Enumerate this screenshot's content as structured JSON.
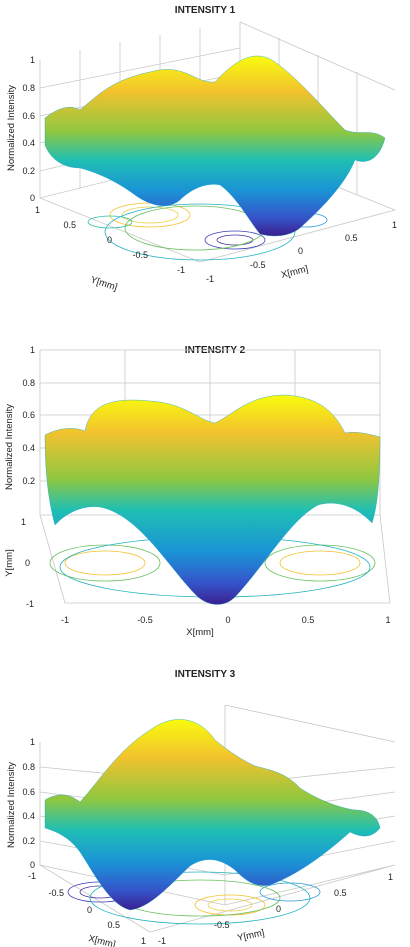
{
  "chart_data": [
    {
      "type": "surface3d",
      "title": "INTENSITY 1",
      "xlabel": "X[mm]",
      "ylabel": "Y[mm]",
      "zlabel": "Normalized Intensity",
      "xlim": [
        -1,
        1
      ],
      "ylim": [
        -1,
        1
      ],
      "zlim": [
        0,
        1
      ],
      "xticks": [
        "-1",
        "-0.5",
        "0",
        "0.5",
        "1"
      ],
      "yticks": [
        "-1",
        "-0.5",
        "0",
        "0.5",
        "1"
      ],
      "zticks": [
        "0",
        "0.2",
        "0.4",
        "0.6",
        "0.8",
        "1"
      ],
      "surface_peak": 1,
      "surface_min": 0,
      "contour_projection": true,
      "colormap": "parula",
      "grid": true
    },
    {
      "type": "surface3d",
      "title": "INTENSITY 2",
      "xlabel": "X[mm]",
      "ylabel": "Y[mm]",
      "zlabel": "Normalized Intensity",
      "xlim": [
        -1,
        1
      ],
      "ylim": [
        -1,
        1
      ],
      "zlim": [
        0,
        1
      ],
      "xticks": [
        "-1",
        "-0.5",
        "0",
        "0.5",
        "1"
      ],
      "yticks": [
        "-1",
        "0",
        "1"
      ],
      "zticks": [
        "0.2",
        "0.4",
        "0.6",
        "0.8",
        "1"
      ],
      "surface_peak": 1,
      "surface_min": 0,
      "contour_projection": true,
      "colormap": "parula",
      "grid": true
    },
    {
      "type": "surface3d",
      "title": "INTENSITY 3",
      "xlabel": "X[mm]",
      "ylabel": "Y[mm]",
      "zlabel": "Normalized Intensity",
      "xlim": [
        -1,
        1
      ],
      "ylim": [
        -1,
        1
      ],
      "zlim": [
        0,
        1
      ],
      "xticks": [
        "-1",
        "-0.5",
        "0",
        "0.5",
        "1"
      ],
      "yticks": [
        "-1",
        "-0.5",
        "0",
        "0.5",
        "1"
      ],
      "zticks": [
        "0",
        "0.2",
        "0.4",
        "0.6",
        "0.8",
        "1"
      ],
      "surface_peak": 1,
      "surface_min": 0,
      "contour_projection": true,
      "colormap": "parula",
      "grid": true
    }
  ]
}
